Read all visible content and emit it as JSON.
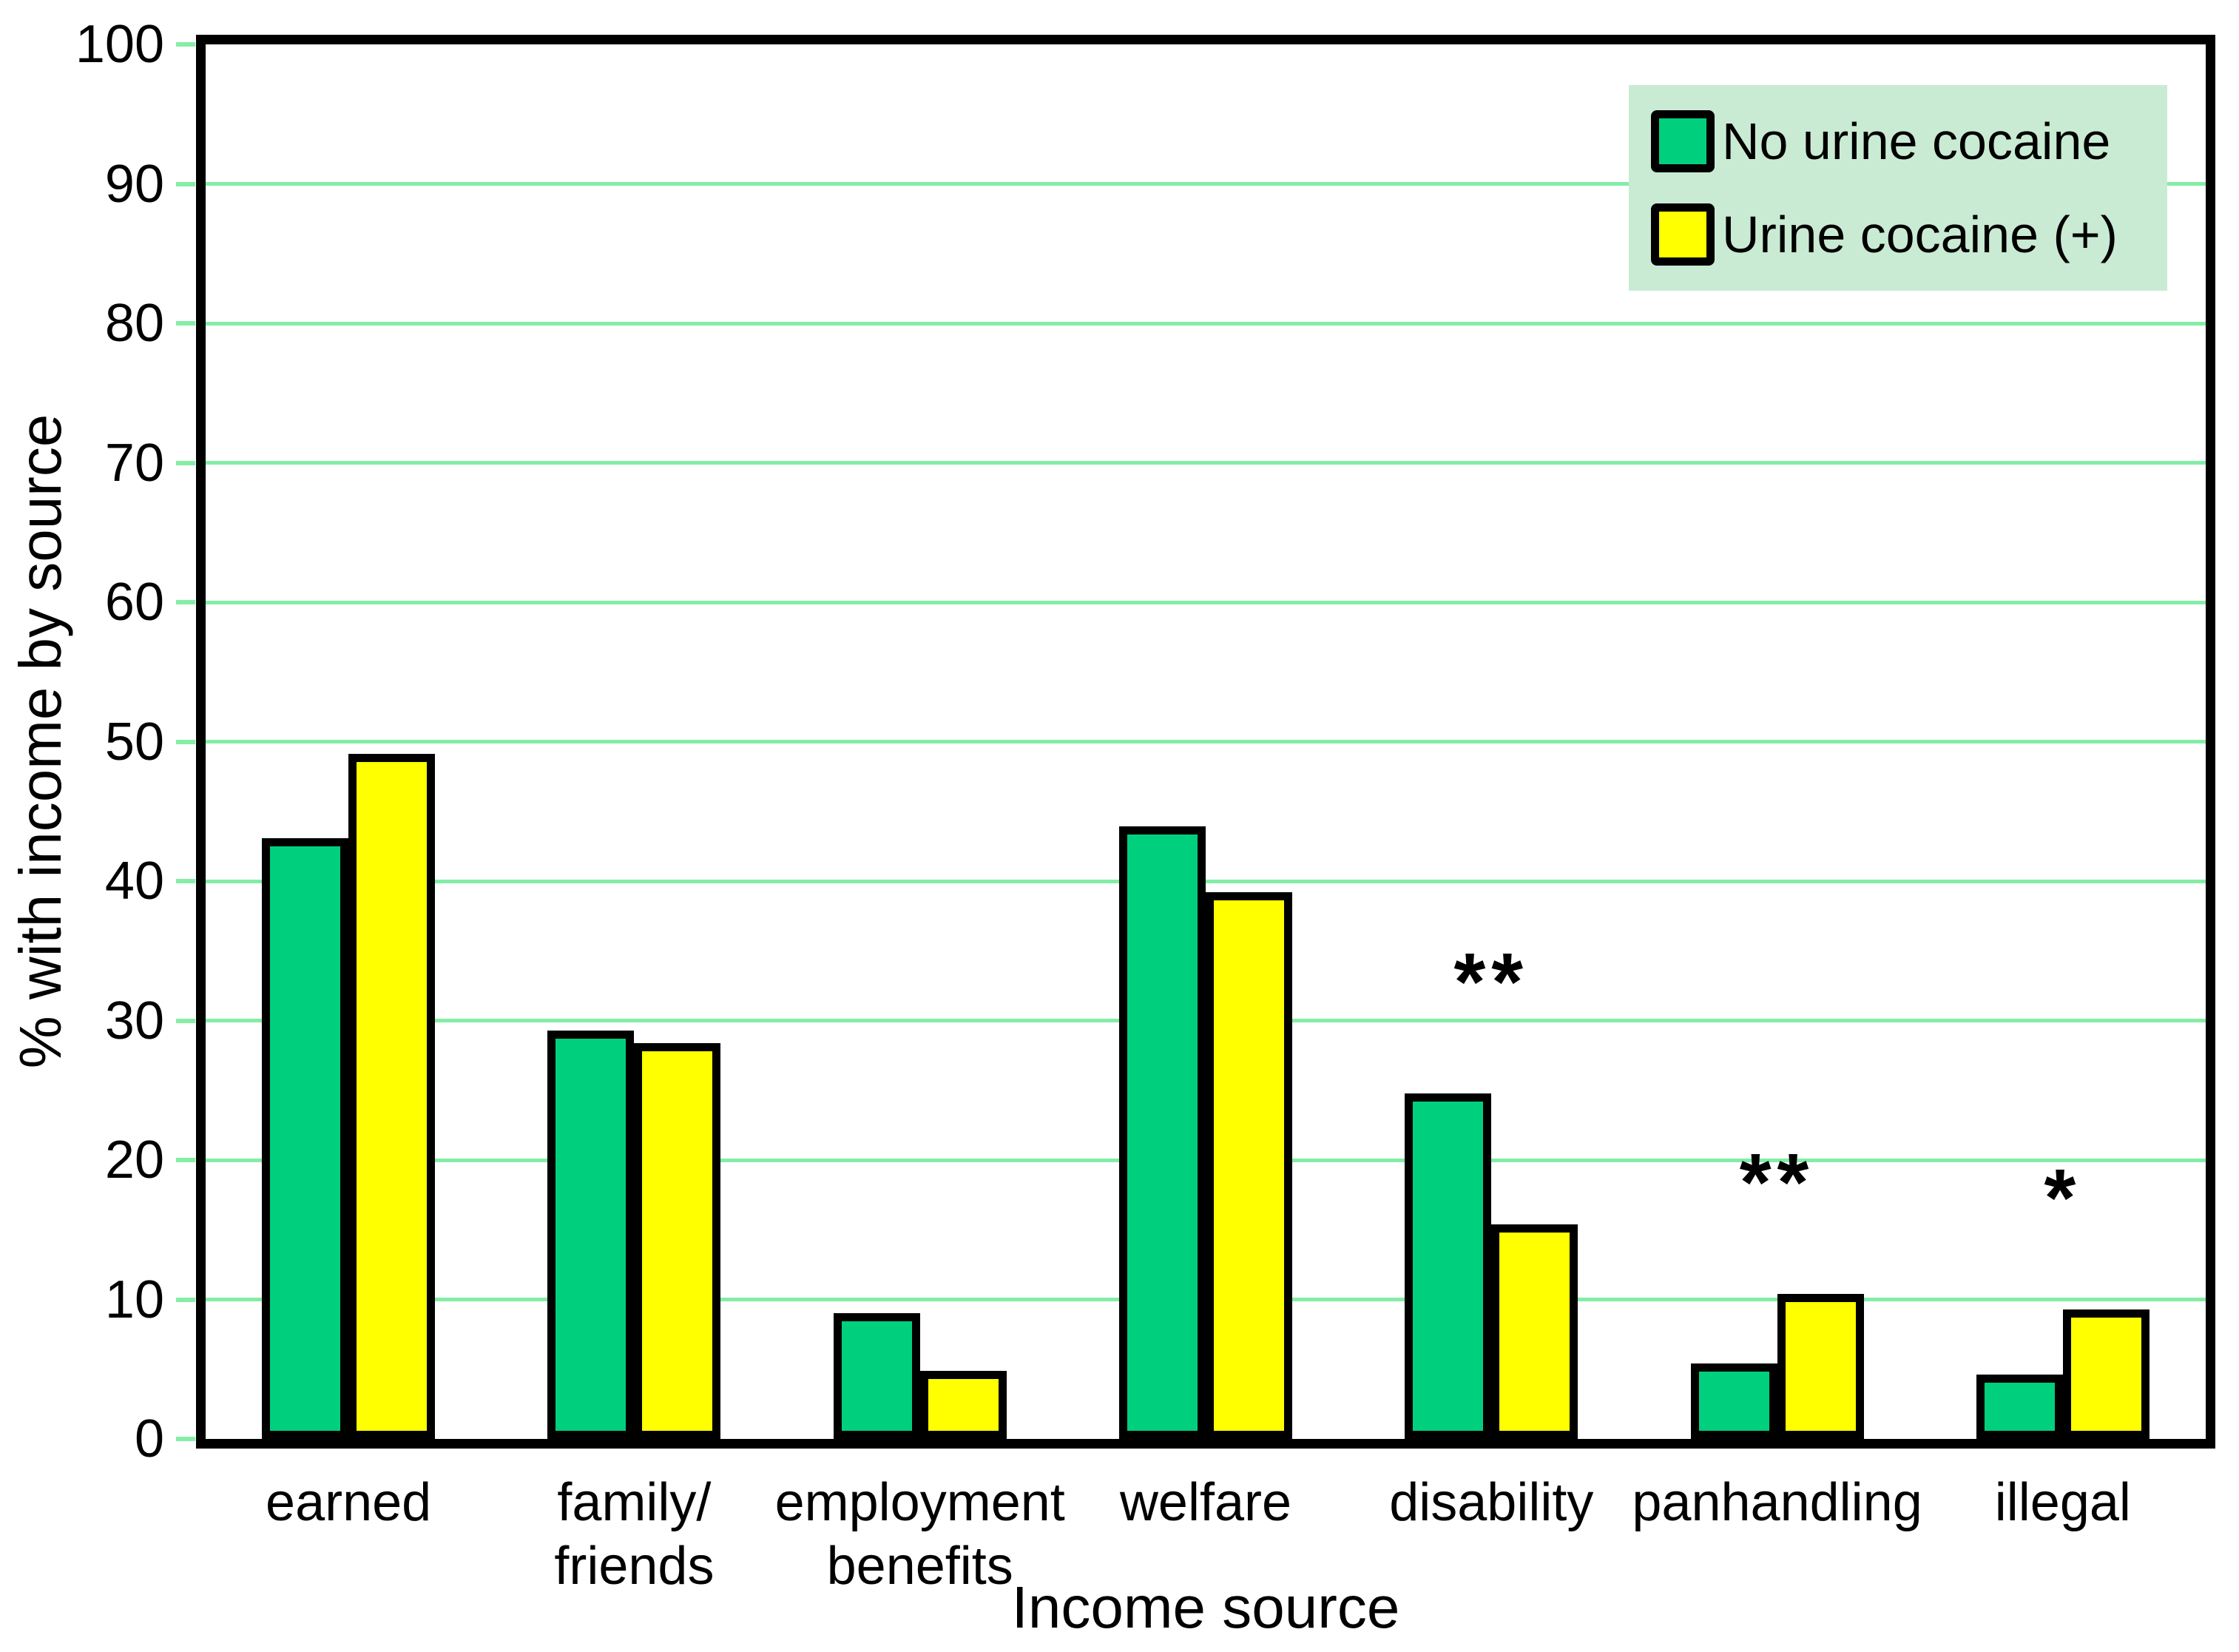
{
  "chart_data": {
    "type": "bar",
    "title": "",
    "xlabel": "Income source",
    "ylabel": "% with income by source",
    "categories": [
      "earned",
      "family/\nfriends",
      "employment\nbenefits",
      "welfare",
      "disability",
      "panhandling",
      "illegal"
    ],
    "series": [
      {
        "name": "No urine cocaine",
        "color": "#00D07E",
        "values": [
          43.1,
          29.3,
          9.0,
          43.9,
          24.8,
          5.4,
          4.6
        ]
      },
      {
        "name": "Urine cocaine (+)",
        "color": "#FFFF00",
        "values": [
          49.1,
          28.4,
          4.9,
          39.2,
          15.4,
          10.4,
          9.3
        ]
      }
    ],
    "ylim": [
      0,
      100
    ],
    "yticks": [
      0,
      10,
      20,
      30,
      40,
      50,
      60,
      70,
      80,
      90,
      100
    ],
    "grid": true,
    "legend_position": "top-right",
    "annotations": [
      {
        "category_index": 4,
        "series_index": 0,
        "text": "**"
      },
      {
        "category_index": 5,
        "series_index": 1,
        "text": "**"
      },
      {
        "category_index": 6,
        "series_index": 1,
        "text": "*"
      }
    ]
  },
  "colors": {
    "gridline": "#83EDA7",
    "tick": "#86EDA6",
    "legend_background": "#C9EBD3",
    "axis": "#000000",
    "background": "#FFFFFF"
  }
}
